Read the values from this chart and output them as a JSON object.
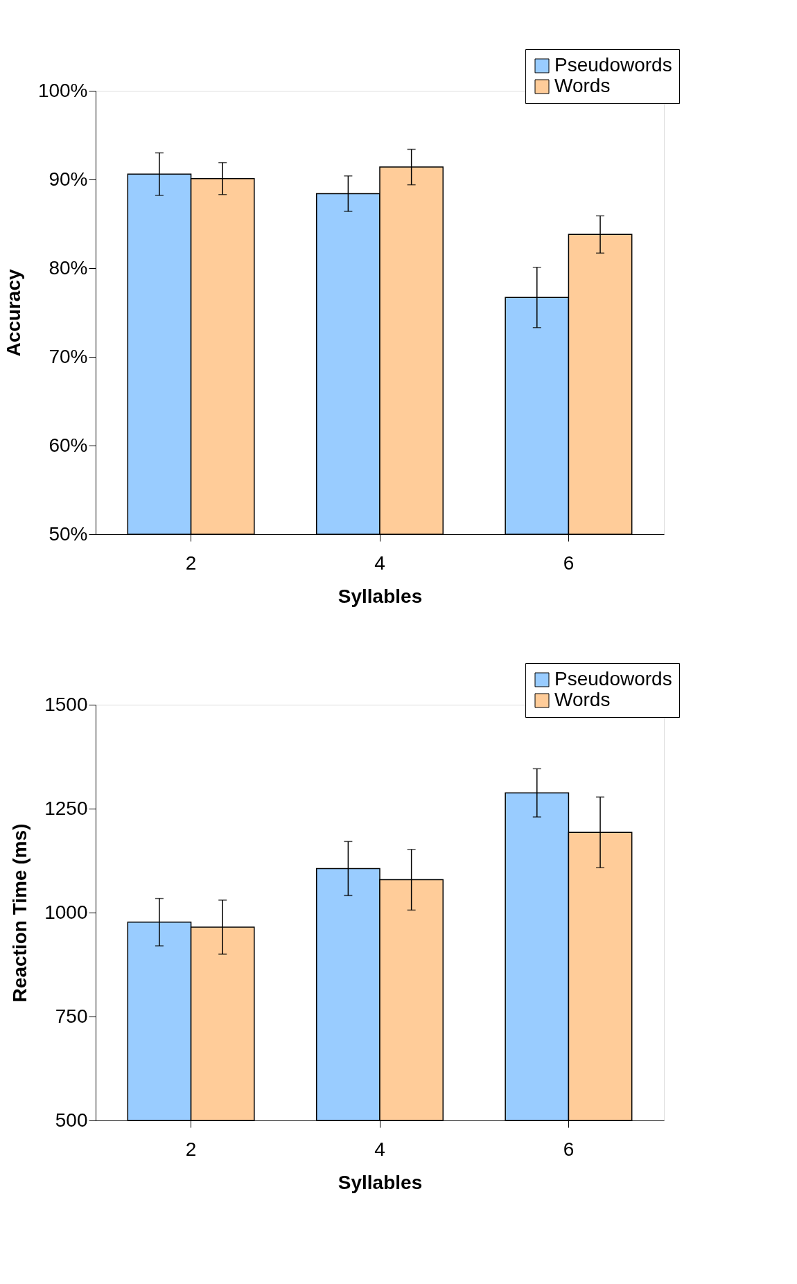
{
  "chart_data": [
    {
      "type": "bar",
      "xlabel": "Syllables",
      "ylabel": "Accuracy",
      "categories": [
        "2",
        "4",
        "6"
      ],
      "series": [
        {
          "name": "Pseudowords",
          "color": "#99ccff",
          "values": [
            90.6,
            88.4,
            76.7
          ],
          "errors": [
            2.4,
            2.0,
            3.4
          ]
        },
        {
          "name": "Words",
          "color": "#ffcc99",
          "values": [
            90.1,
            91.4,
            83.8
          ],
          "errors": [
            1.8,
            2.0,
            2.1
          ]
        }
      ],
      "ylim": [
        50,
        100
      ],
      "yticks": [
        {
          "value": 50,
          "label": "50%"
        },
        {
          "value": 60,
          "label": "60%"
        },
        {
          "value": 70,
          "label": "70%"
        },
        {
          "value": 80,
          "label": "80%"
        },
        {
          "value": 90,
          "label": "90%"
        },
        {
          "value": 100,
          "label": "100%"
        }
      ],
      "legend": "top right"
    },
    {
      "type": "bar",
      "xlabel": "Syllables",
      "ylabel": "Reaction Time (ms)",
      "categories": [
        "2",
        "4",
        "6"
      ],
      "series": [
        {
          "name": "Pseudowords",
          "color": "#99ccff",
          "values": [
            977,
            1106,
            1288
          ],
          "errors": [
            57,
            65,
            58
          ]
        },
        {
          "name": "Words",
          "color": "#ffcc99",
          "values": [
            965,
            1079,
            1193
          ],
          "errors": [
            65,
            73,
            85
          ]
        }
      ],
      "ylim": [
        500,
        1500
      ],
      "yticks": [
        500,
        750,
        1000,
        1250,
        1500
      ],
      "legend": "top right"
    }
  ]
}
